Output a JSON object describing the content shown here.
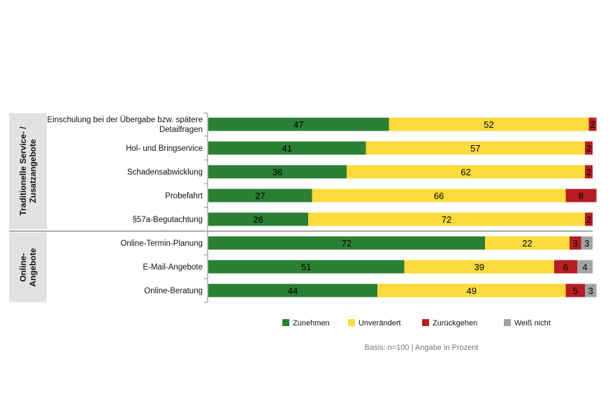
{
  "chart_data": {
    "type": "bar",
    "orientation": "horizontal",
    "stacked": true,
    "groups": [
      {
        "label": "Traditionelle Service- / Zusatzangebote",
        "label_lines": [
          "Traditionelle Service- /",
          "Zusatzangebote"
        ],
        "start": 0,
        "end": 4
      },
      {
        "label": "Online-Angebote",
        "label_lines": [
          "Online-",
          "Angebote"
        ],
        "start": 5,
        "end": 7
      }
    ],
    "categories": [
      "Einschulung bei der Übergabe bzw. spätere Detailfragen",
      "Hol- und Bringservice",
      "Schadensabwicklung",
      "Probefahrt",
      "§57a-Begutachtung",
      "Online-Termin-Planung",
      "E-Mail-Angebote",
      "Online-Beratung"
    ],
    "category_lines": [
      [
        "Einschulung bei der Übergabe bzw. spätere",
        "Detailfragen"
      ],
      [
        "Hol- und Bringservice"
      ],
      [
        "Schadensabwicklung"
      ],
      [
        "Probefahrt"
      ],
      [
        "§57a-Begutachtung"
      ],
      [
        "Online-Termin-Planung"
      ],
      [
        "E-Mail-Angebote"
      ],
      [
        "Online-Beratung"
      ]
    ],
    "series": [
      {
        "name": "Zunehmen",
        "color": "#2b7f34",
        "values": [
          47,
          41,
          36,
          27,
          26,
          72,
          51,
          44
        ]
      },
      {
        "name": "Unverändert",
        "color": "#fbda3c",
        "values": [
          52,
          57,
          62,
          66,
          72,
          22,
          39,
          49
        ]
      },
      {
        "name": "Zurückgehen",
        "color": "#b41e23",
        "values": [
          2,
          2,
          2,
          8,
          2,
          3,
          6,
          5
        ]
      },
      {
        "name": "Weiß nicht",
        "color": "#a3a3a3",
        "values": [
          null,
          null,
          null,
          null,
          null,
          3,
          4,
          3
        ]
      }
    ],
    "xlim": [
      0,
      100
    ],
    "legend_position": "bottom",
    "grid": false,
    "note": "Basis: n=100 | Angabe in Prozent"
  }
}
